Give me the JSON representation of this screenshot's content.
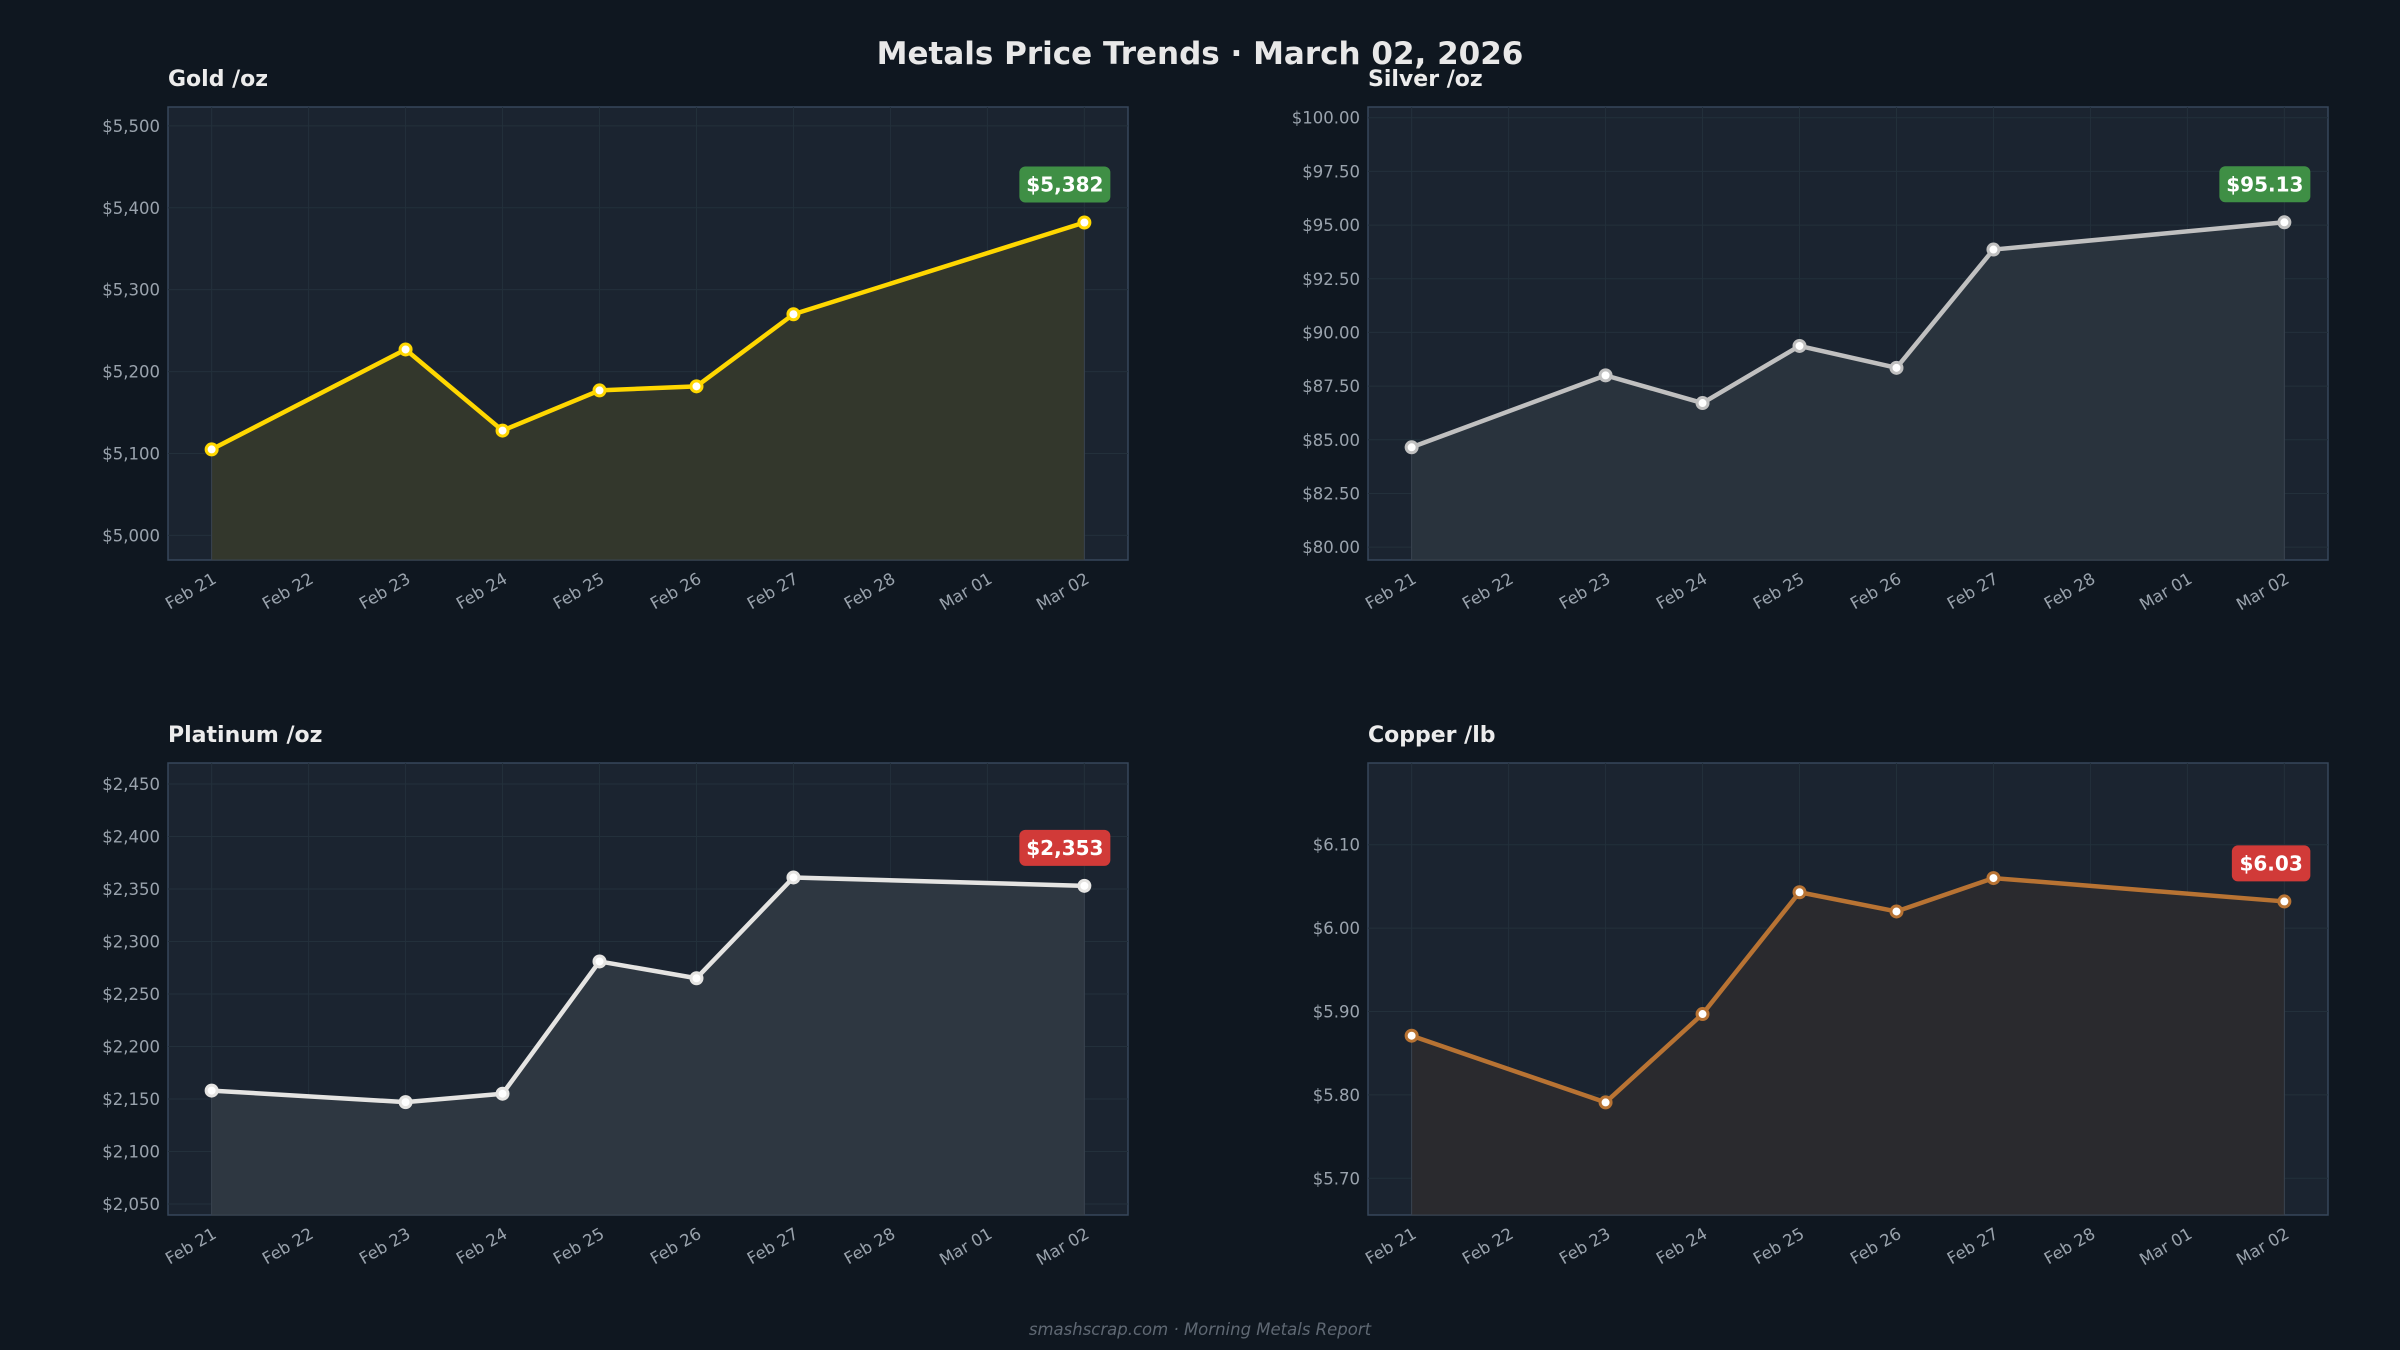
{
  "title": "Metals Price Trends  ·  March 02, 2026",
  "footer": "smashscrap.com  ·  Morning Metals Report",
  "chart_data": [
    {
      "type": "area",
      "title": "Gold  /oz",
      "x_ticks": [
        "Feb 21",
        "Feb 22",
        "Feb 23",
        "Feb 24",
        "Feb 25",
        "Feb 26",
        "Feb 27",
        "Feb 28",
        "Mar 01",
        "Mar 02"
      ],
      "x": [
        "Feb 21",
        "Feb 23",
        "Feb 24",
        "Feb 25",
        "Feb 26",
        "Feb 27",
        "Mar 02"
      ],
      "y": [
        5105,
        5227,
        5128,
        5177,
        5182,
        5270,
        5382
      ],
      "ylim": [
        4970,
        5523
      ],
      "y_ticks": [
        5000,
        5100,
        5200,
        5300,
        5400,
        5500
      ],
      "y_tick_labels": [
        "$5,000",
        "$5,100",
        "$5,200",
        "$5,300",
        "$5,400",
        "$5,500"
      ],
      "last_label": "$5,382",
      "badge_color": "#3f8f45",
      "line_color": "#ffd700",
      "fill_color": "#33372c",
      "grid": true
    },
    {
      "type": "area",
      "title": "Silver  /oz",
      "x_ticks": [
        "Feb 21",
        "Feb 22",
        "Feb 23",
        "Feb 24",
        "Feb 25",
        "Feb 26",
        "Feb 27",
        "Feb 28",
        "Mar 01",
        "Mar 02"
      ],
      "x": [
        "Feb 21",
        "Feb 23",
        "Feb 24",
        "Feb 25",
        "Feb 26",
        "Feb 27",
        "Mar 02"
      ],
      "y": [
        84.65,
        88.0,
        86.71,
        89.37,
        88.35,
        93.86,
        95.13
      ],
      "ylim": [
        79.4,
        100.5
      ],
      "y_ticks": [
        80,
        82.5,
        85,
        87.5,
        90,
        92.5,
        95,
        97.5,
        100
      ],
      "y_tick_labels": [
        "$80.00",
        "$82.50",
        "$85.00",
        "$87.50",
        "$90.00",
        "$92.50",
        "$95.00",
        "$97.50",
        "$100.00"
      ],
      "last_label": "$95.13",
      "badge_color": "#3f8f45",
      "line_color": "#c0c0c0",
      "fill_color": "#29333d",
      "grid": true
    },
    {
      "type": "area",
      "title": "Platinum  /oz",
      "x_ticks": [
        "Feb 21",
        "Feb 22",
        "Feb 23",
        "Feb 24",
        "Feb 25",
        "Feb 26",
        "Feb 27",
        "Feb 28",
        "Mar 01",
        "Mar 02"
      ],
      "x": [
        "Feb 21",
        "Feb 23",
        "Feb 24",
        "Feb 25",
        "Feb 26",
        "Feb 27",
        "Mar 02"
      ],
      "y": [
        2158,
        2147,
        2155,
        2281,
        2265,
        2361,
        2353
      ],
      "ylim": [
        2039.5,
        2470
      ],
      "y_ticks": [
        2050,
        2100,
        2150,
        2200,
        2250,
        2300,
        2350,
        2400,
        2450
      ],
      "y_tick_labels": [
        "$2,050",
        "$2,100",
        "$2,150",
        "$2,200",
        "$2,250",
        "$2,300",
        "$2,350",
        "$2,400",
        "$2,450"
      ],
      "last_label": "$2,353",
      "badge_color": "#d13a38",
      "line_color": "#e5e4e2",
      "fill_color": "#2e3741",
      "grid": true
    },
    {
      "type": "area",
      "title": "Copper  /lb",
      "x_ticks": [
        "Feb 21",
        "Feb 22",
        "Feb 23",
        "Feb 24",
        "Feb 25",
        "Feb 26",
        "Feb 27",
        "Feb 28",
        "Mar 01",
        "Mar 02"
      ],
      "x": [
        "Feb 21",
        "Feb 23",
        "Feb 24",
        "Feb 25",
        "Feb 26",
        "Feb 27",
        "Mar 02"
      ],
      "y": [
        5.871,
        5.791,
        5.897,
        6.043,
        6.02,
        6.06,
        6.032
      ],
      "ylim": [
        5.656,
        6.198
      ],
      "y_ticks": [
        5.7,
        5.8,
        5.9,
        6.0,
        6.1
      ],
      "y_tick_labels": [
        "$5.70",
        "$5.80",
        "$5.90",
        "$6.00",
        "$6.10"
      ],
      "last_label": "$6.03",
      "badge_color": "#d13a38",
      "line_color": "#b87333",
      "fill_color": "#2a2a2e",
      "grid": true
    }
  ]
}
